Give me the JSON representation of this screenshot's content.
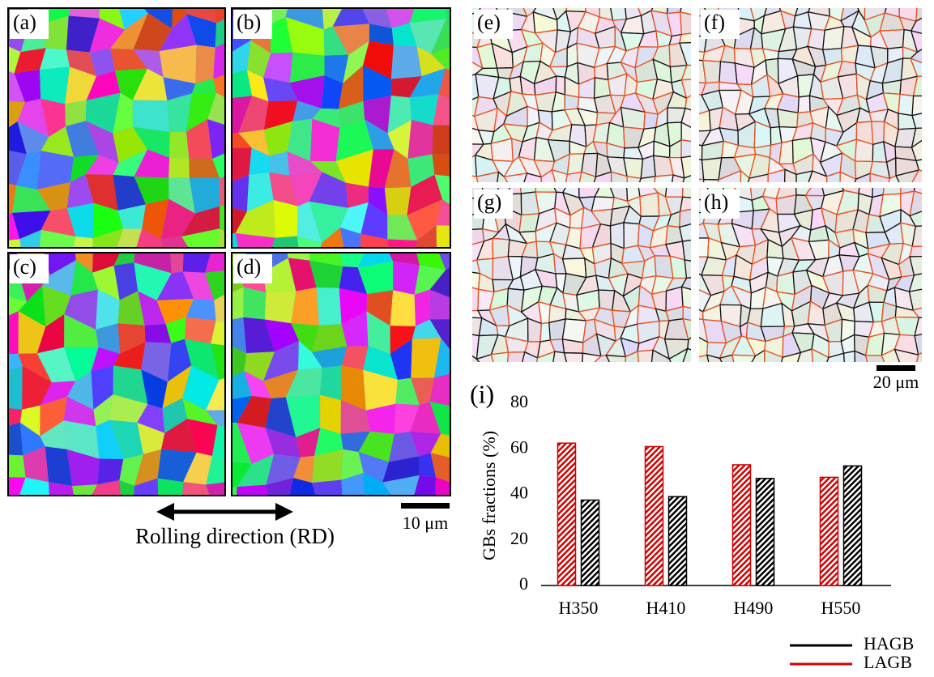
{
  "panel_labels": [
    "(a)",
    "(b)",
    "(c)",
    "(d)",
    "(e)",
    "(f)",
    "(g)",
    "(h)",
    "(i)"
  ],
  "scale_bars": [
    "10 μm",
    "20 μm"
  ],
  "rolling_direction": "Rolling direction (RD)",
  "chart_data": {
    "type": "bar",
    "y_label": "GBs fractions (%)",
    "categories": [
      "H350",
      "H410",
      "H490",
      "H550"
    ],
    "series": [
      {
        "name": "LAGB",
        "color": "#d00000",
        "values": [
          62.5,
          61,
          53,
          47.5
        ]
      },
      {
        "name": "HAGB",
        "color": "#000000",
        "values": [
          37.5,
          39,
          47,
          52.5
        ]
      }
    ],
    "ylim": [
      0,
      80
    ],
    "yticks": [
      0,
      20,
      40,
      60,
      80
    ],
    "hatched": true
  }
}
